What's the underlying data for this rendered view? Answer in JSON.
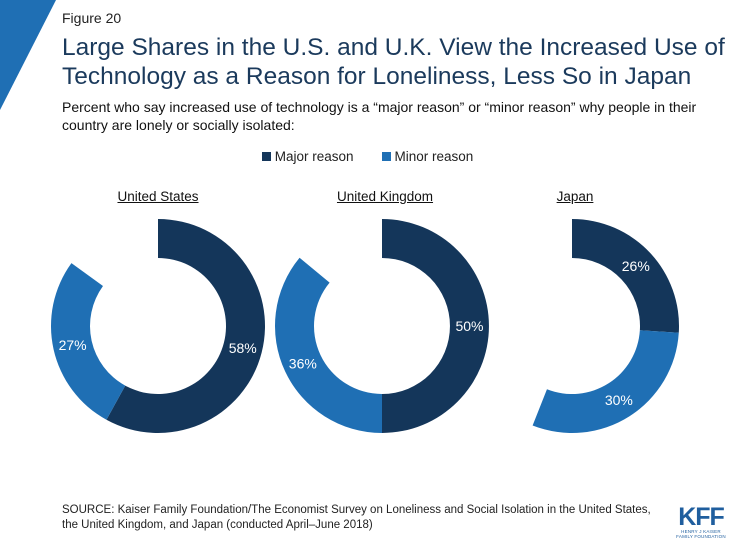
{
  "figure_label": "Figure 20",
  "title": "Large Shares in the U.S. and U.K. View the Increased Use of Technology as a Reason for Loneliness, Less So in Japan",
  "subtitle": "Percent who say increased use of technology is a “major reason” or “minor reason” why people in their country are lonely or socially isolated:",
  "legend": [
    {
      "label": "Major reason",
      "color": "#14365a"
    },
    {
      "label": "Minor reason",
      "color": "#1f6fb4"
    }
  ],
  "chart_data": [
    {
      "type": "pie",
      "title": "United States",
      "categories": [
        "Major reason",
        "Minor reason"
      ],
      "values": [
        58,
        27
      ],
      "labels": [
        "58%",
        "27%"
      ]
    },
    {
      "type": "pie",
      "title": "United Kingdom",
      "categories": [
        "Major reason",
        "Minor reason"
      ],
      "values": [
        50,
        36
      ],
      "labels": [
        "50%",
        "36%"
      ]
    },
    {
      "type": "pie",
      "title": "Japan",
      "categories": [
        "Major reason",
        "Minor reason"
      ],
      "values": [
        26,
        30
      ],
      "labels": [
        "26%",
        "30%"
      ]
    }
  ],
  "source": "SOURCE: Kaiser Family Foundation/The Economist Survey on Loneliness and Social Isolation in the United States, the United Kingdom, and Japan (conducted April–June 2018)",
  "logo": {
    "mark": "KFF",
    "sub": "HENRY J KAISER FAMILY FOUNDATION"
  },
  "colors": {
    "accent": "#1f6fb4",
    "corner": "#1f6fb4"
  }
}
